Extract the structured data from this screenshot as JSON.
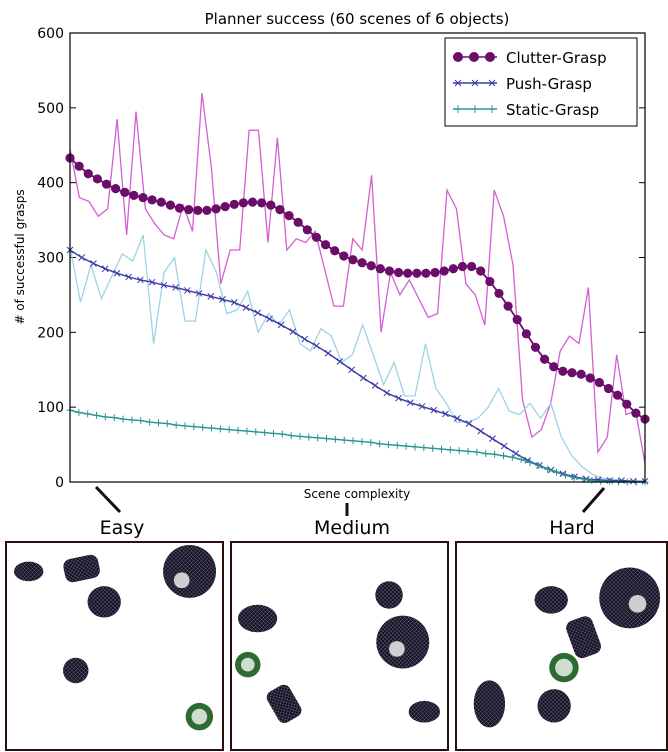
{
  "chart_data": {
    "type": "line",
    "title": "Planner success (60 scenes of 6 objects)",
    "xlabel": "Scene complexity",
    "ylabel": "# of successful grasps",
    "ylim": [
      0,
      600
    ],
    "yticks": [
      0,
      100,
      200,
      300,
      400,
      500,
      600
    ],
    "xlim": [
      0,
      59
    ],
    "legend_position": "top-right",
    "series": [
      {
        "name": "Clutter-Grasp",
        "color": "#6a0e6a",
        "raw_color": "#d35fd3",
        "marker": "circle",
        "smoothed": [
          433,
          422,
          412,
          405,
          398,
          392,
          387,
          383,
          380,
          377,
          374,
          370,
          366,
          364,
          363,
          363,
          365,
          368,
          371,
          373,
          374,
          373,
          370,
          364,
          356,
          347,
          337,
          327,
          317,
          309,
          302,
          297,
          293,
          289,
          285,
          282,
          280,
          279,
          279,
          279,
          280,
          282,
          285,
          288,
          288,
          282,
          268,
          252,
          235,
          217,
          198,
          180,
          164,
          154,
          148,
          146,
          144,
          139,
          133,
          125,
          116,
          104,
          92,
          84
        ],
        "raw": [
          445,
          380,
          375,
          355,
          365,
          485,
          330,
          495,
          365,
          345,
          330,
          325,
          370,
          335,
          520,
          420,
          265,
          310,
          310,
          470,
          470,
          320,
          460,
          310,
          325,
          320,
          335,
          285,
          235,
          235,
          325,
          310,
          410,
          200,
          280,
          250,
          270,
          245,
          220,
          225,
          390,
          365,
          265,
          250,
          210,
          390,
          355,
          290,
          110,
          60,
          70,
          105,
          175,
          195,
          185,
          260,
          40,
          60,
          170,
          90,
          95,
          25
        ]
      },
      {
        "name": "Push-Grasp",
        "color": "#3a3aa8",
        "raw_color": "#9ed3e4",
        "marker": "x",
        "smoothed": [
          310,
          300,
          292,
          285,
          279,
          274,
          270,
          267,
          263,
          260,
          256,
          252,
          248,
          244,
          240,
          233,
          226,
          218,
          210,
          201,
          191,
          182,
          172,
          161,
          150,
          139,
          129,
          119,
          112,
          106,
          101,
          96,
          91,
          85,
          78,
          68,
          58,
          48,
          38,
          29,
          22,
          16,
          11,
          7,
          4,
          3,
          2,
          2,
          1,
          1
        ],
        "raw": [
          315,
          240,
          290,
          245,
          275,
          305,
          295,
          330,
          185,
          280,
          300,
          215,
          215,
          310,
          280,
          225,
          230,
          255,
          200,
          225,
          210,
          230,
          185,
          175,
          205,
          195,
          160,
          170,
          210,
          170,
          130,
          160,
          115,
          115,
          185,
          125,
          105,
          80,
          80,
          85,
          100,
          125,
          95,
          90,
          105,
          85,
          105,
          60,
          35,
          20,
          10,
          5,
          3,
          2,
          1,
          0
        ]
      },
      {
        "name": "Static-Grasp",
        "color": "#2a9590",
        "raw_color": "#2a9590",
        "marker": "plus",
        "smoothed": [
          96,
          93,
          91,
          89,
          87,
          86,
          84,
          83,
          82,
          80,
          79,
          78,
          76,
          75,
          74,
          73,
          72,
          71,
          70,
          69,
          68,
          67,
          66,
          65,
          64,
          62,
          61,
          60,
          59,
          58,
          57,
          56,
          55,
          54,
          53,
          51,
          50,
          49,
          48,
          47,
          46,
          45,
          44,
          43,
          42,
          41,
          40,
          38,
          37,
          35,
          33,
          30,
          26,
          22,
          17,
          13,
          9,
          6,
          4,
          2,
          1,
          1,
          0,
          0,
          0,
          0
        ]
      }
    ]
  },
  "difficulty_labels": {
    "easy": "Easy",
    "medium": "Medium",
    "hard": "Hard"
  }
}
